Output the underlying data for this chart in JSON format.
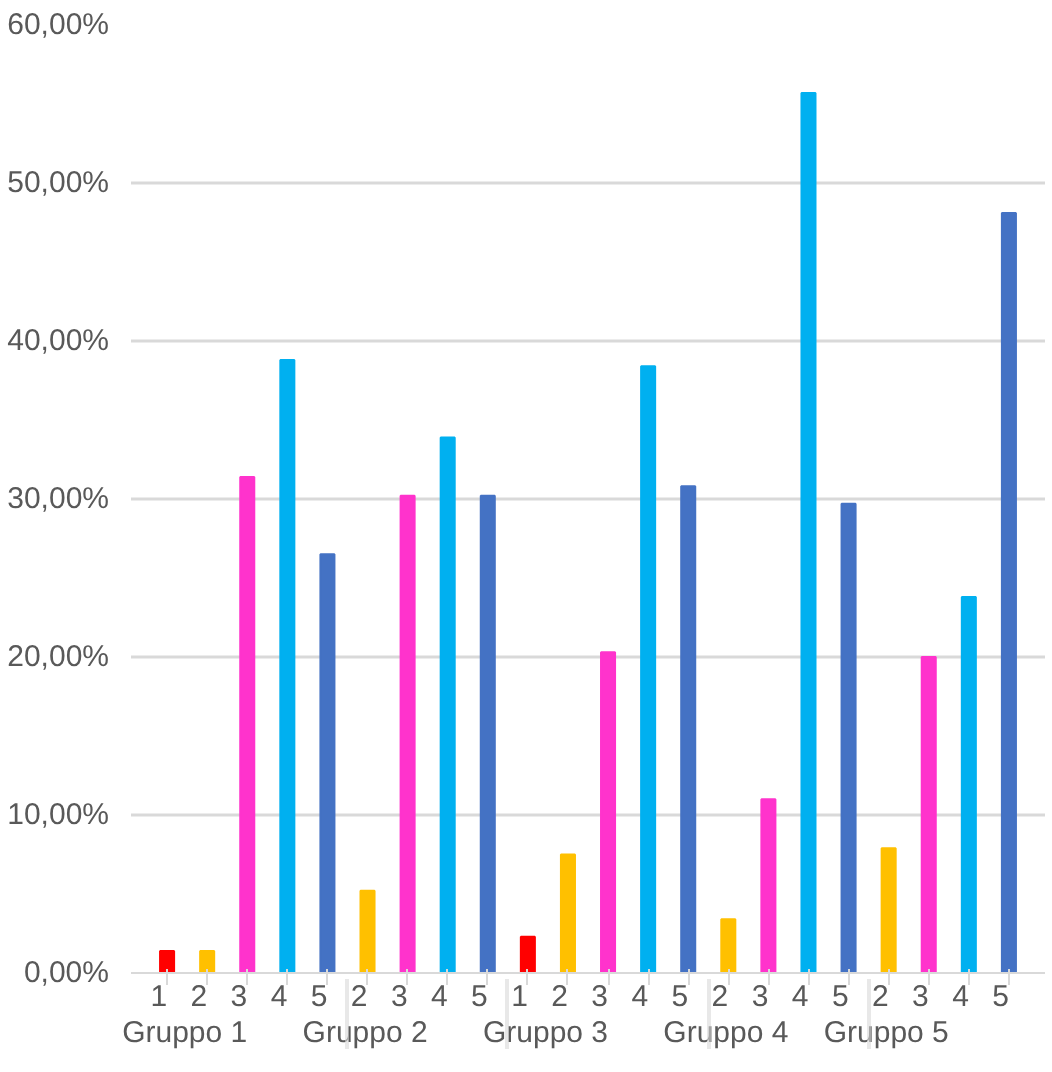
{
  "chart_data": {
    "type": "bar",
    "categories": [
      "1",
      "2",
      "3",
      "4",
      "5",
      "2",
      "3",
      "4",
      "5",
      "1",
      "2",
      "3",
      "4",
      "5",
      "2",
      "3",
      "4",
      "5",
      "2",
      "3",
      "4",
      "5"
    ],
    "values": [
      1.4,
      1.4,
      31.4,
      38.8,
      26.5,
      5.2,
      30.2,
      33.9,
      30.2,
      2.3,
      7.5,
      20.3,
      38.4,
      30.8,
      3.4,
      11.0,
      55.7,
      29.7,
      7.9,
      20.0,
      23.8,
      48.1
    ],
    "colors": [
      "#ff0000",
      "#ffc000",
      "#ff33cc",
      "#00b0f0",
      "#4472c4",
      "#ffc000",
      "#ff33cc",
      "#00b0f0",
      "#4472c4",
      "#ff0000",
      "#ffc000",
      "#ff33cc",
      "#00b0f0",
      "#4472c4",
      "#ffc000",
      "#ff33cc",
      "#00b0f0",
      "#4472c4",
      "#ffc000",
      "#ff33cc",
      "#00b0f0",
      "#4472c4"
    ],
    "annotations": [
      "Gruppo 1",
      "Gruppo 2",
      "Gruppo 3",
      "Gruppo 4",
      "Gruppo 5"
    ],
    "ylim": [
      0,
      60
    ],
    "yticks": [
      {
        "value": 0,
        "label": "0,00%"
      },
      {
        "value": 10,
        "label": "10,00%"
      },
      {
        "value": 20,
        "label": "20,00%"
      },
      {
        "value": 30,
        "label": "30,00%"
      },
      {
        "value": 40,
        "label": "40,00%"
      },
      {
        "value": 50,
        "label": "50,00%"
      },
      {
        "value": 60,
        "label": "60,00%"
      }
    ],
    "grid": "y"
  }
}
